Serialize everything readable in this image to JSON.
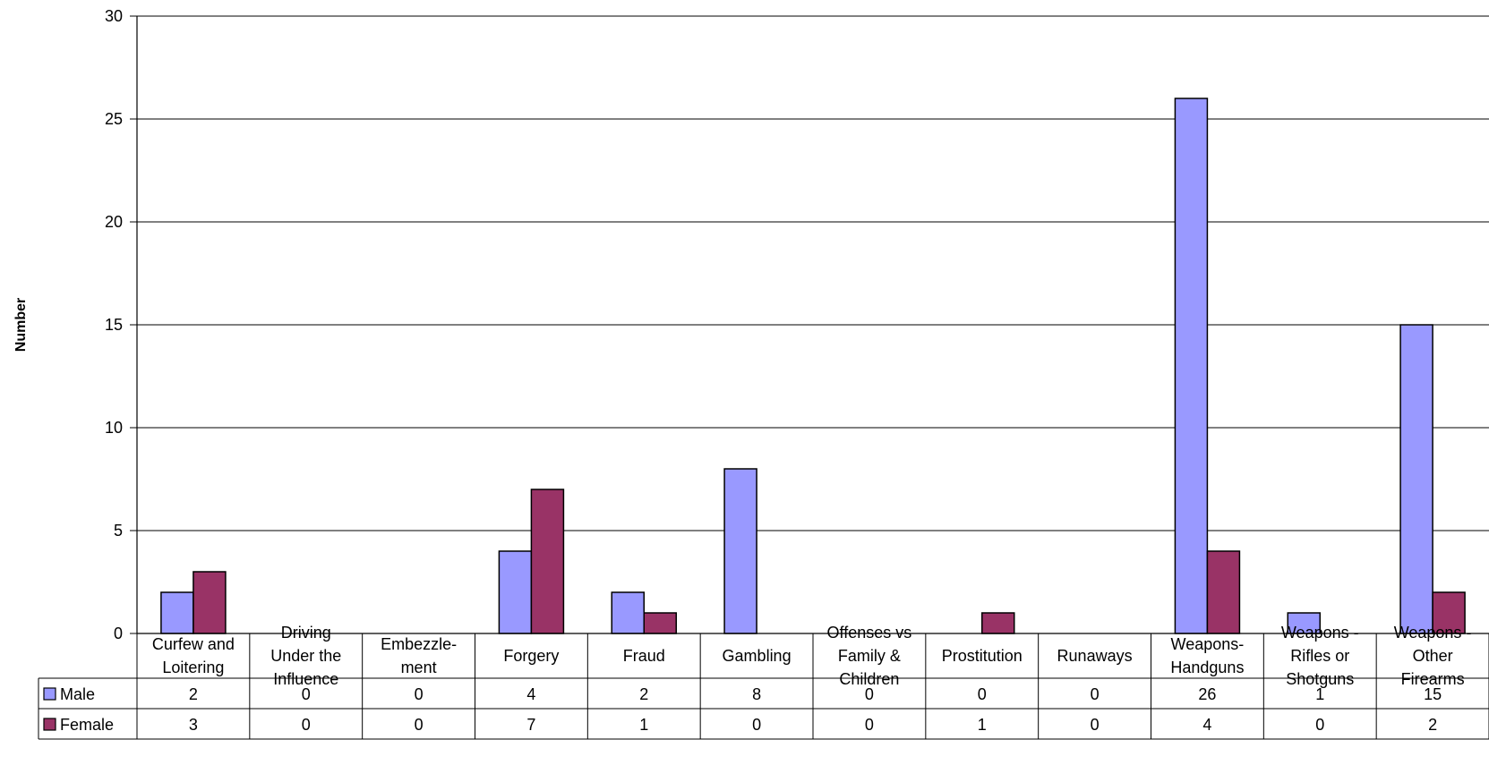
{
  "chart_data": {
    "type": "bar",
    "title": "",
    "xlabel": "",
    "ylabel": "Number",
    "ylim": [
      0,
      30
    ],
    "yticks": [
      0,
      5,
      10,
      15,
      20,
      25,
      30
    ],
    "grid": true,
    "legend": "in data table, left",
    "categories": [
      [
        "Curfew and",
        "Loitering"
      ],
      [
        "Driving",
        "Under the",
        "Influence"
      ],
      [
        "Embezzle-",
        "ment"
      ],
      [
        "Forgery"
      ],
      [
        "Fraud"
      ],
      [
        "Gambling"
      ],
      [
        "Offenses vs",
        "Family &",
        "Children"
      ],
      [
        "Prostitution"
      ],
      [
        "Runaways"
      ],
      [
        "Weapons-",
        "Handguns"
      ],
      [
        "Weapons -",
        "Rifles or",
        "Shotguns"
      ],
      [
        "Weapons -",
        "Other",
        "Firearms"
      ]
    ],
    "series": [
      {
        "name": "Male",
        "color": "#9999ff",
        "values": [
          2,
          0,
          0,
          4,
          2,
          8,
          0,
          0,
          0,
          26,
          1,
          15
        ]
      },
      {
        "name": "Female",
        "color": "#993366",
        "values": [
          3,
          0,
          0,
          7,
          1,
          0,
          0,
          1,
          0,
          4,
          0,
          2
        ]
      }
    ]
  }
}
